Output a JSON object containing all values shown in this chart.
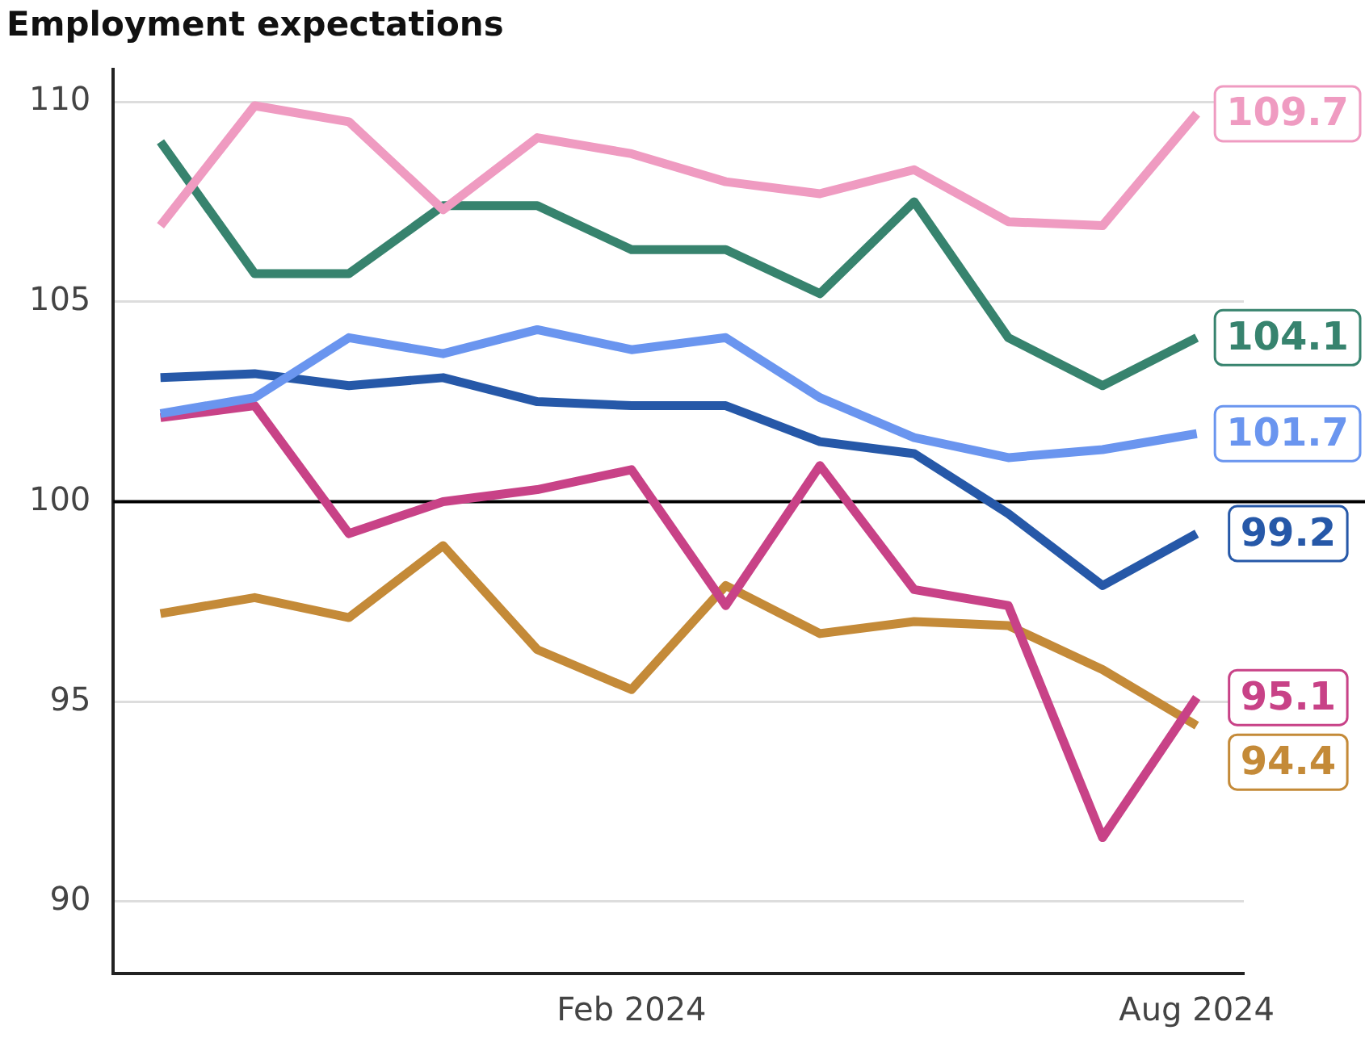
{
  "chart_data": {
    "type": "line",
    "title": "Employment expectations",
    "categories": [
      null,
      null,
      null,
      null,
      null,
      "Feb 2024",
      null,
      null,
      null,
      null,
      null,
      "Aug 2024"
    ],
    "series": [
      {
        "color": "#ef9bc1",
        "values": [
          106.9,
          109.9,
          109.5,
          107.3,
          109.1,
          108.7,
          108.0,
          107.7,
          108.3,
          107.0,
          106.9,
          109.7
        ],
        "value_labels": [
          null,
          null,
          null,
          null,
          null,
          null,
          null,
          null,
          null,
          null,
          null,
          "109.7"
        ]
      },
      {
        "color": "#37836e",
        "values": [
          109.0,
          105.7,
          105.7,
          107.4,
          107.4,
          106.3,
          106.3,
          105.2,
          107.5,
          104.1,
          102.9,
          104.1
        ],
        "value_labels": [
          null,
          null,
          null,
          null,
          null,
          null,
          null,
          null,
          null,
          null,
          null,
          "104.1"
        ]
      },
      {
        "color": "#6a95ef",
        "values": [
          102.2,
          102.6,
          104.1,
          103.7,
          104.3,
          103.8,
          104.1,
          102.6,
          101.6,
          101.1,
          101.3,
          101.7
        ],
        "value_labels": [
          null,
          null,
          null,
          null,
          null,
          null,
          null,
          null,
          null,
          null,
          null,
          "101.7"
        ]
      },
      {
        "color": "#2658a8",
        "values": [
          103.1,
          103.2,
          102.9,
          103.1,
          102.5,
          102.4,
          102.4,
          101.5,
          101.2,
          99.7,
          97.9,
          99.2
        ],
        "value_labels": [
          null,
          null,
          null,
          null,
          null,
          null,
          null,
          null,
          null,
          null,
          null,
          "99.2"
        ]
      },
      {
        "color": "#c84287",
        "values": [
          102.1,
          102.4,
          99.2,
          100.0,
          100.3,
          100.8,
          97.4,
          100.9,
          97.8,
          97.4,
          91.6,
          95.1
        ],
        "value_labels": [
          null,
          null,
          null,
          null,
          null,
          null,
          null,
          null,
          null,
          null,
          null,
          "95.1"
        ]
      },
      {
        "color": "#c48a38",
        "values": [
          97.2,
          97.6,
          97.1,
          98.9,
          96.3,
          95.3,
          97.9,
          96.7,
          97.0,
          96.9,
          95.8,
          94.4
        ],
        "value_labels": [
          null,
          null,
          null,
          null,
          null,
          null,
          null,
          null,
          null,
          null,
          null,
          "94.4"
        ]
      }
    ],
    "ylim": [
      88.2,
      110.8
    ],
    "yticks": [
      90,
      95,
      100,
      105,
      110
    ],
    "grid": "y",
    "legend": false,
    "marker": "none",
    "line_style": "solid",
    "ref_lines": [
      {
        "axis": "y",
        "value": 100,
        "color": "#000000"
      }
    ]
  }
}
